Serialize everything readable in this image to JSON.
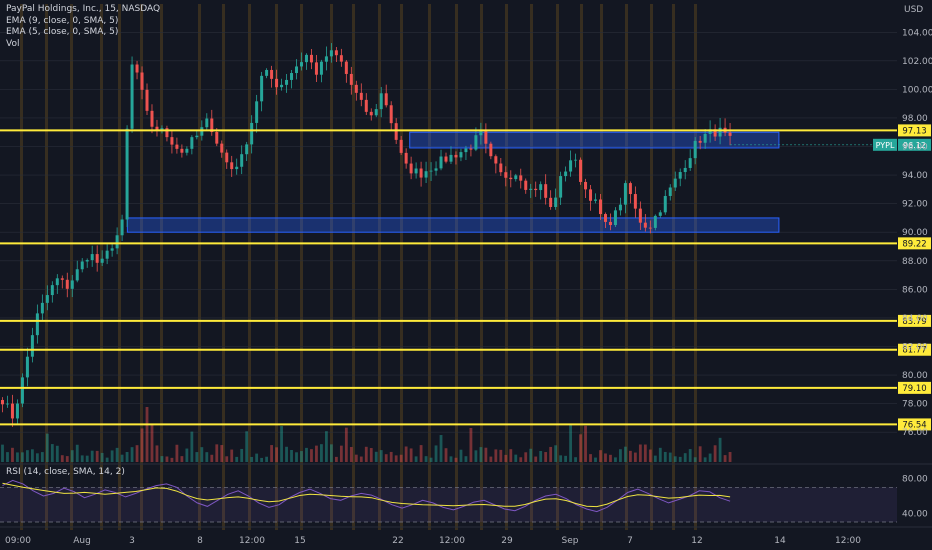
{
  "header": {
    "symbol_title": "PayPal Holdings, Inc., 15, NASDAQ",
    "indicators": [
      "EMA (9, close, 0, SMA, 5)",
      "EMA (5, close, 0, SMA, 5)",
      "Vol"
    ],
    "currency": "USD",
    "rsi_title": "RSI (14, close, SMA, 14, 2)"
  },
  "colors": {
    "background": "#131722",
    "level_line": "#ffeb3b",
    "zone_fill": "#2962ff",
    "candle_up": "#26a69a",
    "candle_down": "#ef5350",
    "rsi_line": "#7e57c2",
    "rsi_ma": "#f0e442",
    "session_stripe": "#7a5a1e"
  },
  "chart_data": {
    "type": "candlestick",
    "title": "PayPal Holdings, Inc., 15, NASDAQ",
    "x_tick_labels": [
      "09:00",
      "Aug",
      "3",
      "8",
      "12:00",
      "15",
      "22",
      "12:00",
      "29",
      "Sep",
      "7",
      "12",
      "14",
      "12:00"
    ],
    "y_tick_labels": [
      "104.00",
      "102.00",
      "100.00",
      "98.00",
      "96.00",
      "94.00",
      "92.00",
      "90.00",
      "88.00",
      "86.00",
      "84.00",
      "82.00",
      "80.00",
      "78.00",
      "76.00"
    ],
    "ylim": [
      75.8,
      105.0
    ],
    "price_path": [
      {
        "x": 0,
        "y": 78.3
      },
      {
        "x": 2,
        "y": 77.0
      },
      {
        "x": 4,
        "y": 80.2
      },
      {
        "x": 6,
        "y": 83.8
      },
      {
        "x": 8,
        "y": 85.4
      },
      {
        "x": 10,
        "y": 86.7
      },
      {
        "x": 12,
        "y": 86.2
      },
      {
        "x": 14,
        "y": 87.4
      },
      {
        "x": 16,
        "y": 88.6
      },
      {
        "x": 18,
        "y": 87.6
      },
      {
        "x": 20,
        "y": 89.0
      },
      {
        "x": 22,
        "y": 90.4
      },
      {
        "x": 23,
        "y": 97.5
      },
      {
        "x": 24,
        "y": 102.3
      },
      {
        "x": 25,
        "y": 100.8
      },
      {
        "x": 27,
        "y": 97.6
      },
      {
        "x": 30,
        "y": 96.9
      },
      {
        "x": 33,
        "y": 95.6
      },
      {
        "x": 36,
        "y": 96.8
      },
      {
        "x": 38,
        "y": 97.9
      },
      {
        "x": 40,
        "y": 95.8
      },
      {
        "x": 42,
        "y": 94.4
      },
      {
        "x": 44,
        "y": 95.1
      },
      {
        "x": 46,
        "y": 97.9
      },
      {
        "x": 48,
        "y": 101.3
      },
      {
        "x": 51,
        "y": 100.2
      },
      {
        "x": 54,
        "y": 101.6
      },
      {
        "x": 56,
        "y": 102.4
      },
      {
        "x": 58,
        "y": 101.1
      },
      {
        "x": 60,
        "y": 102.6
      },
      {
        "x": 62,
        "y": 102.2
      },
      {
        "x": 64,
        "y": 100.5
      },
      {
        "x": 66,
        "y": 99.0
      },
      {
        "x": 68,
        "y": 98.0
      },
      {
        "x": 70,
        "y": 99.9
      },
      {
        "x": 72,
        "y": 97.2
      },
      {
        "x": 74,
        "y": 94.6
      },
      {
        "x": 77,
        "y": 94.1
      },
      {
        "x": 80,
        "y": 94.8
      },
      {
        "x": 83,
        "y": 95.4
      },
      {
        "x": 86,
        "y": 95.9
      },
      {
        "x": 88,
        "y": 96.9
      },
      {
        "x": 90,
        "y": 95.0
      },
      {
        "x": 92,
        "y": 93.9
      },
      {
        "x": 95,
        "y": 94.2
      },
      {
        "x": 97,
        "y": 92.9
      },
      {
        "x": 99,
        "y": 93.3
      },
      {
        "x": 101,
        "y": 91.6
      },
      {
        "x": 103,
        "y": 93.9
      },
      {
        "x": 105,
        "y": 95.4
      },
      {
        "x": 107,
        "y": 93.2
      },
      {
        "x": 109,
        "y": 92.2
      },
      {
        "x": 111,
        "y": 90.4
      },
      {
        "x": 113,
        "y": 91.3
      },
      {
        "x": 115,
        "y": 93.4
      },
      {
        "x": 117,
        "y": 91.0
      },
      {
        "x": 119,
        "y": 90.3
      },
      {
        "x": 121,
        "y": 91.6
      },
      {
        "x": 123,
        "y": 93.0
      },
      {
        "x": 126,
        "y": 95.0
      },
      {
        "x": 128,
        "y": 96.4
      },
      {
        "x": 130,
        "y": 96.9
      },
      {
        "x": 132,
        "y": 97.1
      },
      {
        "x": 134,
        "y": 96.4
      }
    ],
    "horizontal_levels": [
      97.13,
      89.22,
      83.79,
      81.77,
      79.1,
      76.54
    ],
    "zones": [
      {
        "from": 95.9,
        "to": 97.0,
        "x_start": 75,
        "x_end": 143
      },
      {
        "from": 90.0,
        "to": 91.0,
        "x_start": 23,
        "x_end": 143
      }
    ],
    "last_price": {
      "label": "PYPL",
      "value": 96.12
    },
    "rsi": {
      "ylim": [
        30,
        90
      ],
      "y_tick_labels": [
        "80.00",
        "40.00"
      ],
      "band": [
        70,
        30
      ],
      "values": [
        72,
        78,
        74,
        66,
        60,
        63,
        69,
        65,
        58,
        62,
        67,
        64,
        59,
        63,
        68,
        72,
        74,
        70,
        60,
        52,
        48,
        55,
        62,
        66,
        60,
        52,
        47,
        50,
        58,
        64,
        68,
        63,
        57,
        55,
        60,
        63,
        61,
        56,
        50,
        46,
        50,
        55,
        52,
        47,
        44,
        48,
        53,
        55,
        50,
        45,
        43,
        48,
        55,
        60,
        62,
        57,
        50,
        45,
        42,
        47,
        55,
        64,
        68,
        63,
        57,
        52,
        56,
        60,
        66,
        65,
        58,
        54
      ]
    }
  }
}
